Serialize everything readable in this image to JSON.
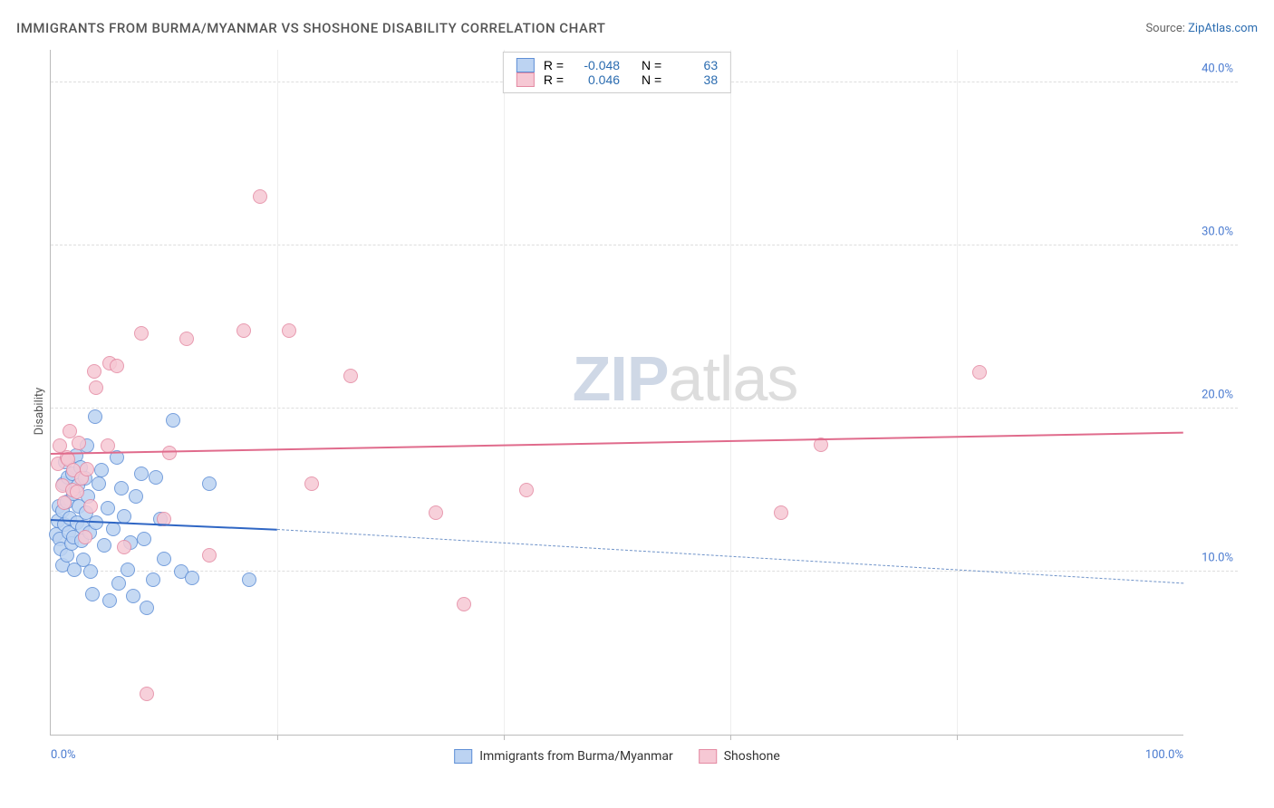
{
  "header": {
    "title": "IMMIGRANTS FROM BURMA/MYANMAR VS SHOSHONE DISABILITY CORRELATION CHART",
    "source_label": "Source:",
    "source_name": "ZipAtlas.com"
  },
  "ylabel": "Disability",
  "watermark": {
    "bold": "ZIP",
    "light": "atlas"
  },
  "axes": {
    "xlim": [
      0,
      100
    ],
    "ylim": [
      0,
      42
    ],
    "yticks": [
      {
        "v": 10,
        "label": "10.0%"
      },
      {
        "v": 20,
        "label": "20.0%"
      },
      {
        "v": 30,
        "label": "30.0%"
      },
      {
        "v": 40,
        "label": "40.0%"
      }
    ],
    "xticks_major": [
      20,
      40,
      60,
      80
    ],
    "xlabels": [
      {
        "v": 0,
        "label": "0.0%",
        "align": "left"
      },
      {
        "v": 100,
        "label": "100.0%",
        "align": "right"
      }
    ]
  },
  "series": [
    {
      "name": "Immigrants from Burma/Myanmar",
      "legend_bottom": "Immigrants from Burma/Myanmar",
      "fill": "#bcd3f2",
      "stroke": "#5f8fd6",
      "line_color": "#2f66c4",
      "dash_color": "#6f93c9",
      "r": "-0.048",
      "n": "63",
      "marker_radius": 8,
      "trend": {
        "x1": 0,
        "y1": 13.2,
        "x2_solid": 20,
        "y2_solid": 12.6,
        "x2": 100,
        "y2": 9.3
      },
      "points": [
        [
          0.5,
          12.3
        ],
        [
          0.6,
          13.1
        ],
        [
          0.7,
          14.0
        ],
        [
          0.8,
          12.0
        ],
        [
          0.9,
          11.4
        ],
        [
          1.0,
          13.7
        ],
        [
          1.0,
          10.4
        ],
        [
          1.1,
          15.4
        ],
        [
          1.2,
          12.9
        ],
        [
          1.3,
          16.7
        ],
        [
          1.4,
          11.0
        ],
        [
          1.4,
          14.3
        ],
        [
          1.5,
          15.8
        ],
        [
          1.6,
          12.4
        ],
        [
          1.7,
          13.3
        ],
        [
          1.8,
          11.7
        ],
        [
          1.9,
          16.0
        ],
        [
          2.0,
          14.8
        ],
        [
          2.0,
          12.1
        ],
        [
          2.1,
          10.1
        ],
        [
          2.2,
          17.1
        ],
        [
          2.3,
          13.0
        ],
        [
          2.4,
          15.3
        ],
        [
          2.5,
          14.0
        ],
        [
          2.6,
          16.4
        ],
        [
          2.7,
          11.9
        ],
        [
          2.8,
          12.7
        ],
        [
          2.9,
          10.7
        ],
        [
          3.0,
          15.7
        ],
        [
          3.1,
          13.6
        ],
        [
          3.2,
          17.7
        ],
        [
          3.3,
          14.6
        ],
        [
          3.4,
          12.4
        ],
        [
          3.5,
          10.0
        ],
        [
          3.7,
          8.6
        ],
        [
          3.9,
          19.5
        ],
        [
          4.0,
          13.0
        ],
        [
          4.2,
          15.4
        ],
        [
          4.5,
          16.2
        ],
        [
          4.7,
          11.6
        ],
        [
          5.0,
          13.9
        ],
        [
          5.2,
          8.2
        ],
        [
          5.5,
          12.6
        ],
        [
          5.8,
          17.0
        ],
        [
          6.0,
          9.3
        ],
        [
          6.2,
          15.1
        ],
        [
          6.5,
          13.4
        ],
        [
          6.8,
          10.1
        ],
        [
          7.0,
          11.8
        ],
        [
          7.3,
          8.5
        ],
        [
          7.5,
          14.6
        ],
        [
          8.0,
          16.0
        ],
        [
          8.2,
          12.0
        ],
        [
          8.5,
          7.8
        ],
        [
          9.0,
          9.5
        ],
        [
          9.3,
          15.8
        ],
        [
          9.7,
          13.2
        ],
        [
          10.0,
          10.8
        ],
        [
          10.8,
          19.3
        ],
        [
          11.5,
          10.0
        ],
        [
          12.5,
          9.6
        ],
        [
          14.0,
          15.4
        ],
        [
          17.5,
          9.5
        ]
      ]
    },
    {
      "name": "Shoshone",
      "legend_bottom": "Shoshone",
      "fill": "#f6c8d4",
      "stroke": "#e48aa3",
      "line_color": "#e06b8c",
      "dash_color": "#e6a0b5",
      "r": "0.046",
      "n": "38",
      "marker_radius": 8,
      "trend": {
        "x1": 0,
        "y1": 17.3,
        "x2_solid": 100,
        "y2_solid": 18.6,
        "x2": 100,
        "y2": 18.6
      },
      "points": [
        [
          0.6,
          16.6
        ],
        [
          0.8,
          17.7
        ],
        [
          1.0,
          15.3
        ],
        [
          1.2,
          14.2
        ],
        [
          1.4,
          17.0
        ],
        [
          1.5,
          16.9
        ],
        [
          1.7,
          18.6
        ],
        [
          1.9,
          15.0
        ],
        [
          2.0,
          16.2
        ],
        [
          2.3,
          14.9
        ],
        [
          2.5,
          17.9
        ],
        [
          2.7,
          15.7
        ],
        [
          3.0,
          12.1
        ],
        [
          3.2,
          16.3
        ],
        [
          3.5,
          14.0
        ],
        [
          3.8,
          22.3
        ],
        [
          4.0,
          21.3
        ],
        [
          5.0,
          17.7
        ],
        [
          5.2,
          22.8
        ],
        [
          5.8,
          22.6
        ],
        [
          6.5,
          11.5
        ],
        [
          8.0,
          24.6
        ],
        [
          8.5,
          2.5
        ],
        [
          10.0,
          13.2
        ],
        [
          10.5,
          17.3
        ],
        [
          12.0,
          24.3
        ],
        [
          14.0,
          11.0
        ],
        [
          17.0,
          24.8
        ],
        [
          18.5,
          33.0
        ],
        [
          21.0,
          24.8
        ],
        [
          23.0,
          15.4
        ],
        [
          26.5,
          22.0
        ],
        [
          34.0,
          13.6
        ],
        [
          36.5,
          8.0
        ],
        [
          42.0,
          15.0
        ],
        [
          64.5,
          13.6
        ],
        [
          68.0,
          17.8
        ],
        [
          82.0,
          22.2
        ]
      ]
    }
  ],
  "legend_top": {
    "r_label": "R =",
    "n_label": "N ="
  }
}
